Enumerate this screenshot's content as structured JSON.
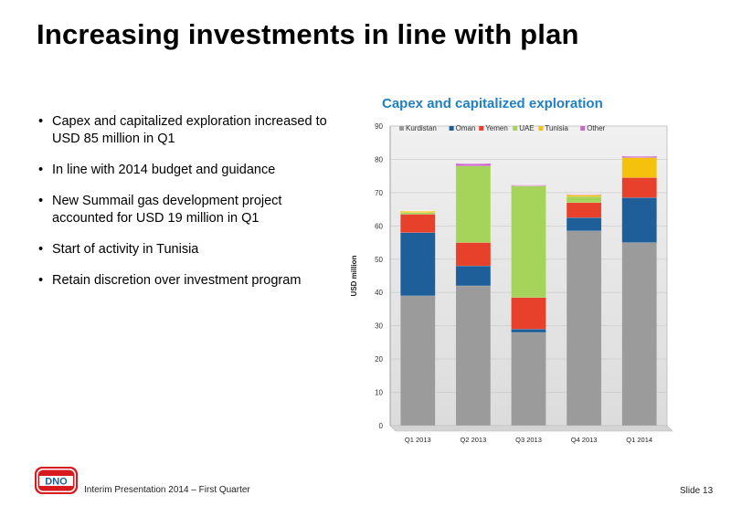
{
  "slide": {
    "title": "Increasing investments in line with plan",
    "footer": "Interim Presentation 2014 – First Quarter",
    "slide_number": "Slide 13",
    "logo_text": "DNO"
  },
  "bullets": [
    "Capex and capitalized exploration increased to USD 85 million in Q1",
    "In line with 2014 budget and guidance",
    "New Summail gas development project accounted for USD 19 million in Q1",
    "Start of activity in Tunisia",
    "Retain discretion over investment program"
  ],
  "chart_data": {
    "type": "bar",
    "stacked": true,
    "title": "Capex and capitalized exploration",
    "ylabel": "USD million",
    "ylim": [
      0,
      90
    ],
    "yticks": [
      0,
      10,
      20,
      30,
      40,
      50,
      60,
      70,
      80,
      90
    ],
    "categories": [
      "Q1 2013",
      "Q2 2013",
      "Q3 2013",
      "Q4 2013",
      "Q1 2014"
    ],
    "legend_position": "top",
    "series": [
      {
        "name": "Kurdistan",
        "color": "#9b9b9b",
        "values": [
          39,
          42,
          28,
          58.5,
          55
        ]
      },
      {
        "name": "Oman",
        "color": "#1f5f99",
        "values": [
          19,
          6,
          1,
          4,
          13.5
        ]
      },
      {
        "name": "Yemen",
        "color": "#e8412b",
        "values": [
          5.5,
          7,
          9.5,
          4.5,
          6
        ]
      },
      {
        "name": "UAE",
        "color": "#a6d45a",
        "values": [
          0.5,
          23,
          33.5,
          1.8,
          0
        ]
      },
      {
        "name": "Tunisia",
        "color": "#f4c20d",
        "values": [
          0.5,
          0,
          0,
          0.5,
          6
        ]
      },
      {
        "name": "Other",
        "color": "#cc66cc",
        "values": [
          0,
          0.8,
          0.3,
          0.2,
          0.5
        ]
      }
    ]
  }
}
